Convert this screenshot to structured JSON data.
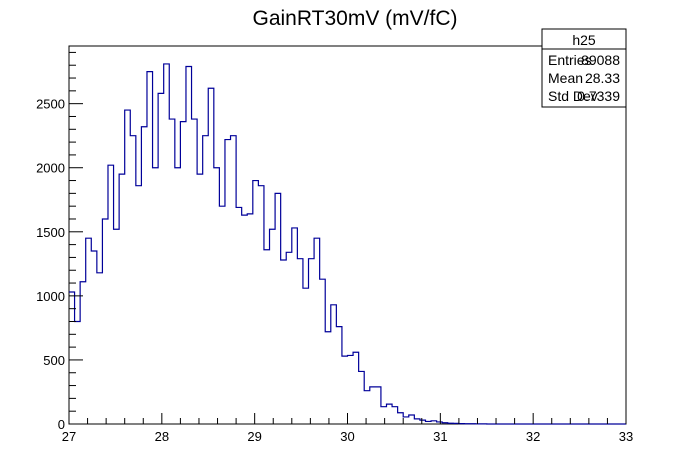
{
  "chart_data": {
    "type": "histogram",
    "title": "GainRT30mV (mV/fC)",
    "xlabel": "",
    "ylabel": "",
    "xlim": [
      27,
      33
    ],
    "ylim": [
      0,
      2950
    ],
    "x_ticks": [
      "27",
      "28",
      "29",
      "30",
      "31",
      "32",
      "33"
    ],
    "y_ticks": [
      "0",
      "500",
      "1000",
      "1500",
      "2000",
      "2500"
    ],
    "y_tick_values": [
      0,
      500,
      1000,
      1500,
      2000,
      2500
    ],
    "x_tick_values": [
      27,
      28,
      29,
      30,
      31,
      32,
      33
    ],
    "bin_start": 27,
    "bin_width": 0.06,
    "bin_values": [
      1030,
      800,
      1110,
      1450,
      1350,
      1180,
      1600,
      2020,
      1520,
      1950,
      2450,
      2250,
      1860,
      2320,
      2750,
      2000,
      2580,
      2810,
      2380,
      2000,
      2360,
      2790,
      2380,
      1950,
      2250,
      2620,
      2000,
      1700,
      2220,
      2250,
      1690,
      1630,
      1640,
      1900,
      1860,
      1360,
      1520,
      1800,
      1280,
      1340,
      1530,
      1290,
      1060,
      1290,
      1450,
      1130,
      720,
      930,
      760,
      530,
      535,
      560,
      410,
      260,
      290,
      290,
      135,
      155,
      135,
      88,
      55,
      70,
      40,
      30,
      20,
      25,
      16,
      10,
      6,
      5,
      3,
      2,
      2,
      1,
      1,
      0,
      0,
      0,
      0,
      0,
      0,
      0,
      0,
      0,
      0,
      0,
      0,
      0,
      0,
      0,
      0,
      0,
      0,
      0,
      0,
      0,
      0,
      0,
      0,
      0
    ],
    "line_color": "#000099",
    "stats": {
      "name": "h25",
      "rows": [
        {
          "label": "Entries",
          "value": "89088"
        },
        {
          "label": "Mean",
          "value": "28.33"
        },
        {
          "label": "Std Dev",
          "value": "0.7339"
        }
      ]
    }
  }
}
